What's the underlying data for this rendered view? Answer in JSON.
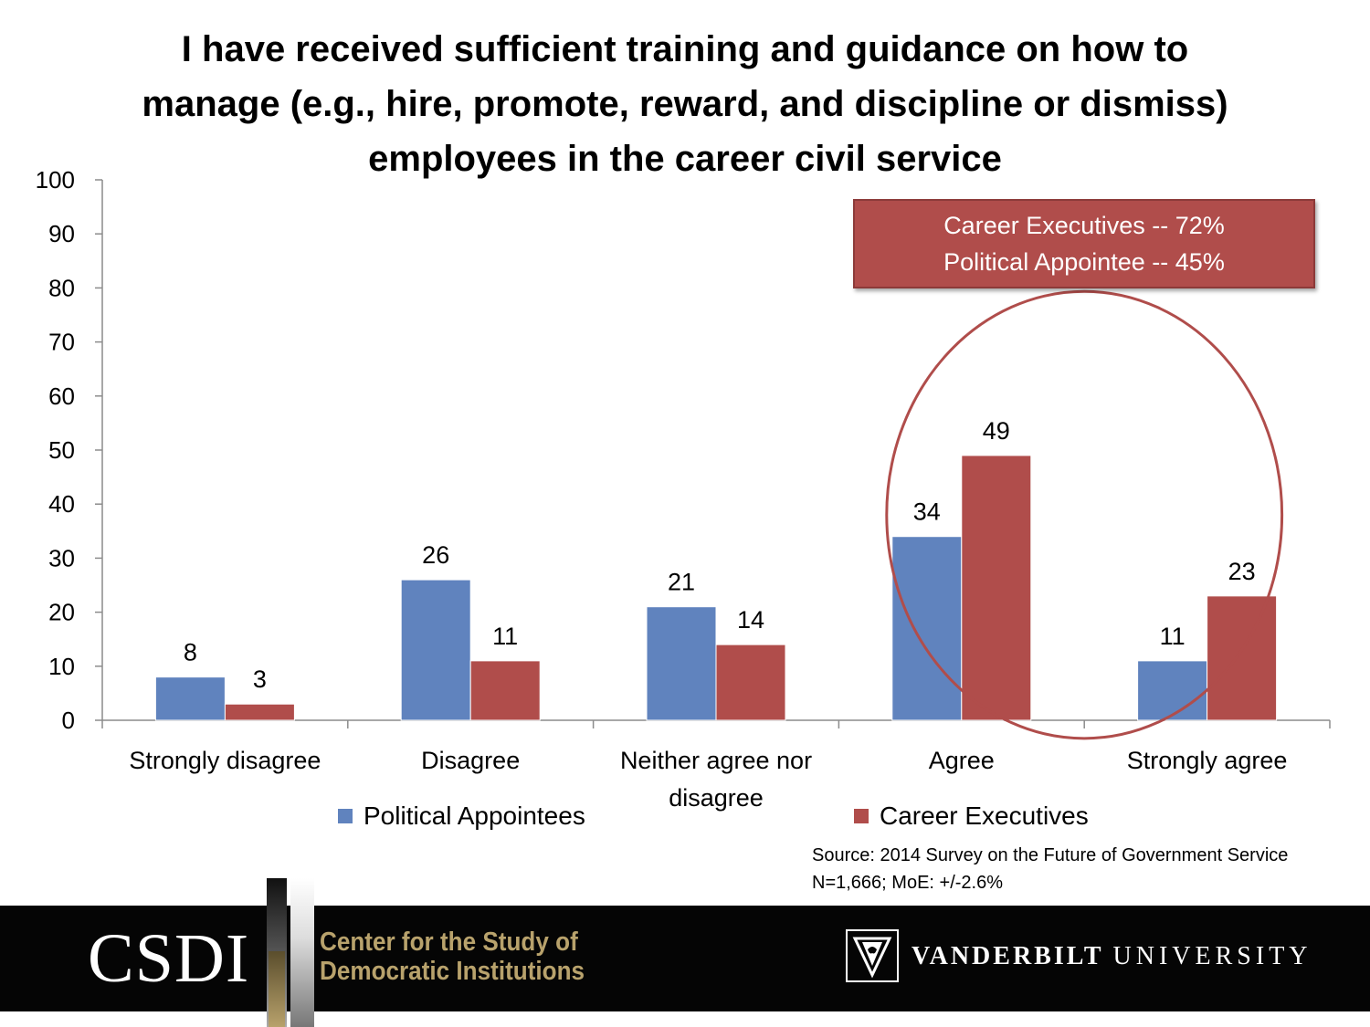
{
  "title_lines": [
    "I have received sufficient training and guidance on how to",
    "manage (e.g., hire, promote, reward, and discipline or dismiss)",
    "employees in the career civil service"
  ],
  "chart_data": {
    "type": "bar",
    "title": "I have received sufficient training and guidance on how to manage (e.g., hire, promote, reward, and discipline or dismiss) employees in the career civil service",
    "categories": [
      "Strongly disagree",
      "Disagree",
      "Neither agree nor disagree",
      "Agree",
      "Strongly agree"
    ],
    "category_lines": [
      [
        "Strongly disagree"
      ],
      [
        "Disagree"
      ],
      [
        "Neither agree nor",
        "disagree"
      ],
      [
        "Agree"
      ],
      [
        "Strongly agree"
      ]
    ],
    "series": [
      {
        "name": "Political Appointees",
        "color": "#6083be",
        "values": [
          8,
          26,
          21,
          34,
          11
        ]
      },
      {
        "name": "Career Executives",
        "color": "#b04d4b",
        "values": [
          3,
          11,
          14,
          49,
          23
        ]
      }
    ],
    "ylim": [
      0,
      100
    ],
    "yticks": [
      0,
      10,
      20,
      30,
      40,
      50,
      60,
      70,
      80,
      90,
      100
    ],
    "xlabel": "",
    "ylabel": "",
    "grid": false,
    "legend_position": "bottom",
    "highlight": {
      "categories": [
        "Agree",
        "Strongly agree"
      ],
      "shape": "ellipse",
      "color": "#b04d4b"
    }
  },
  "callout": {
    "lines": [
      "Career Executives -- 72%",
      "Political Appointee -- 45%"
    ],
    "background": "#b04d4b"
  },
  "legend": [
    {
      "label": "Political Appointees",
      "color": "#6083be"
    },
    {
      "label": "Career Executives",
      "color": "#b04d4b"
    }
  ],
  "source": {
    "line1": "Source: 2014 Survey on the Future of Government Service",
    "line2": "N=1,666; MoE: +/-2.6%"
  },
  "footer": {
    "csdi_logo_text": "CSDI",
    "csdi_name_line1": "Center for the Study of",
    "csdi_name_line2": "Democratic Institutions",
    "csdi_gold": "#b8a26c",
    "vu_name_bold": "VANDERBILT",
    "vu_name_light": "UNIVERSITY",
    "vu_logo_icon": "vanderbilt-v-oak-icon"
  }
}
